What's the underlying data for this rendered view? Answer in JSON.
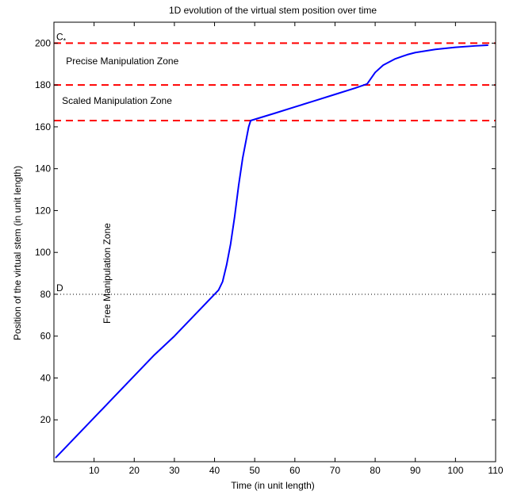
{
  "chart_data": {
    "type": "line",
    "title": "1D evolution of the virtual stem position over time",
    "xlabel": "Time (in unit length)",
    "ylabel": "Position of the virtual stem (in unit length)",
    "xlim": [
      0,
      110
    ],
    "ylim": [
      0,
      210
    ],
    "xticks": [
      10,
      20,
      30,
      40,
      50,
      60,
      70,
      80,
      90,
      100,
      110
    ],
    "yticks": [
      20,
      40,
      60,
      80,
      100,
      120,
      140,
      160,
      180,
      200
    ],
    "grid": false,
    "series": [
      {
        "color": "#0000ff",
        "x": [
          0.5,
          5,
          10,
          15,
          20,
          25,
          30,
          35,
          38,
          40,
          41,
          42,
          43,
          44,
          45,
          46,
          47,
          48,
          48.5,
          49,
          55,
          60,
          65,
          70,
          75,
          78,
          80,
          82,
          85,
          88,
          90,
          95,
          100,
          105,
          108
        ],
        "y": [
          2,
          11,
          21,
          31,
          41,
          51,
          60,
          70,
          76,
          80,
          82,
          86,
          94,
          104,
          117,
          132,
          145,
          155,
          160,
          163,
          166.5,
          169.5,
          172.5,
          175.5,
          178.5,
          180.5,
          186,
          189.5,
          192.5,
          194.5,
          195.5,
          197,
          198,
          198.7,
          199
        ]
      }
    ],
    "reference_lines": [
      {
        "y": 200,
        "style": "dashed",
        "color": "#ff0000",
        "label": "C*"
      },
      {
        "y": 180,
        "style": "dashed",
        "color": "#ff0000",
        "label": ""
      },
      {
        "y": 163,
        "style": "dashed",
        "color": "#ff0000",
        "label": ""
      },
      {
        "y": 80,
        "style": "dotted",
        "color": "#000000",
        "label": "D"
      }
    ],
    "annotations": [
      {
        "text": "Precise Manipulation Zone",
        "x": 3,
        "y": 190,
        "rotation": 0
      },
      {
        "text": "Scaled Manipulation Zone",
        "x": 2,
        "y": 171,
        "rotation": 0
      },
      {
        "text": "Free Manipulation Zone",
        "x": 14,
        "y": 90,
        "rotation": -90
      }
    ]
  }
}
